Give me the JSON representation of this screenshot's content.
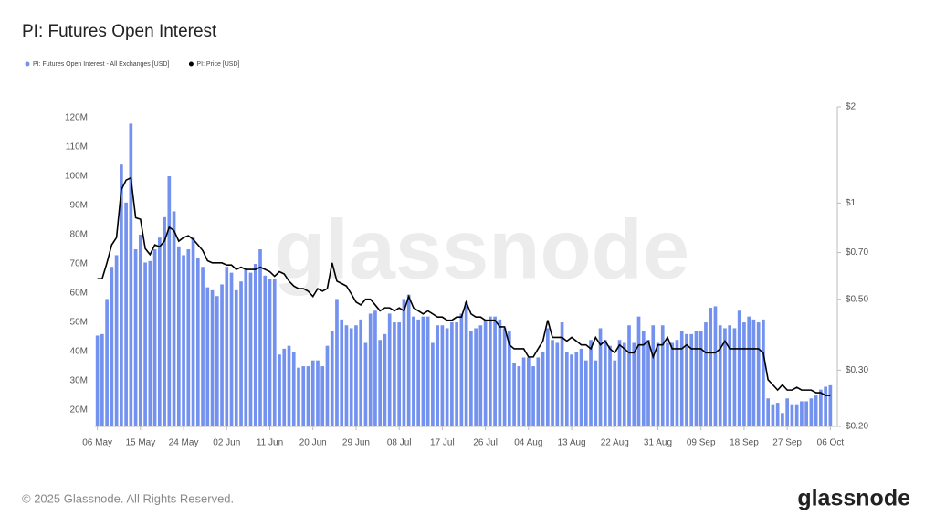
{
  "chart_data": {
    "type": "combo",
    "title": "PI: Futures Open Interest",
    "categories": [
      "06 May",
      null,
      null,
      null,
      null,
      null,
      null,
      null,
      null,
      "15 May",
      null,
      null,
      null,
      null,
      null,
      null,
      null,
      null,
      "24 May",
      null,
      null,
      null,
      null,
      null,
      null,
      null,
      null,
      "02 Jun",
      null,
      null,
      null,
      null,
      null,
      null,
      null,
      null,
      "11 Jun",
      null,
      null,
      null,
      null,
      null,
      null,
      null,
      null,
      "20 Jun",
      null,
      null,
      null,
      null,
      null,
      null,
      null,
      null,
      "29 Jun",
      null,
      null,
      null,
      null,
      null,
      null,
      null,
      null,
      "08 Jul",
      null,
      null,
      null,
      null,
      null,
      null,
      null,
      null,
      "17 Jul",
      null,
      null,
      null,
      null,
      null,
      null,
      null,
      null,
      "26 Jul",
      null,
      null,
      null,
      null,
      null,
      null,
      null,
      null,
      "04 Aug",
      null,
      null,
      null,
      null,
      null,
      null,
      null,
      null,
      "13 Aug",
      null,
      null,
      null,
      null,
      null,
      null,
      null,
      null,
      "22 Aug",
      null,
      null,
      null,
      null,
      null,
      null,
      null,
      null,
      "31 Aug",
      null,
      null,
      null,
      null,
      null,
      null,
      null,
      null,
      "09 Sep",
      null,
      null,
      null,
      null,
      null,
      null,
      null,
      null,
      "18 Sep",
      null,
      null,
      null,
      null,
      null,
      null,
      null,
      null,
      "27 Sep",
      null,
      null,
      null,
      null,
      null,
      null,
      null,
      null,
      "06 Oct"
    ],
    "series": [
      {
        "name": "PI: Futures Open Interest - All Exchanges [USD]",
        "type": "bar",
        "axis": "y",
        "color": "#7391ee",
        "values": [
          45500000.0,
          46000000.0,
          58000000.0,
          69000000.0,
          73000000.0,
          104000000.0,
          91000000.0,
          118000000.0,
          75000000.0,
          80000000.0,
          70500000.0,
          71000000.0,
          75000000.0,
          79000000.0,
          86000000.0,
          100000000.0,
          88000000.0,
          76000000.0,
          73000000.0,
          75000000.0,
          79000000.0,
          72000000.0,
          69000000.0,
          62000000.0,
          61000000.0,
          59000000.0,
          63000000.0,
          69000000.0,
          67000000.0,
          61000000.0,
          64000000.0,
          68000000.0,
          67000000.0,
          70000000.0,
          75000000.0,
          66000000.0,
          65000000.0,
          65000000.0,
          39000000.0,
          41000000.0,
          42000000.0,
          40000000.0,
          34500000.0,
          35000000.0,
          35000000.0,
          37000000.0,
          37000000.0,
          35000000.0,
          42000000.0,
          47000000.0,
          58000000.0,
          51000000.0,
          49000000.0,
          48000000.0,
          49000000.0,
          51000000.0,
          43000000.0,
          53000000.0,
          54000000.0,
          44000000.0,
          46000000.0,
          53000000.0,
          50000000.0,
          50000000.0,
          58000000.0,
          59500000.0,
          52000000.0,
          51000000.0,
          52000000.0,
          52000000.0,
          43000000.0,
          49000000.0,
          49000000.0,
          48000000.0,
          50000000.0,
          50000000.0,
          53000000.0,
          57000000.0,
          47000000.0,
          48000000.0,
          49000000.0,
          51000000.0,
          52000000.0,
          52000000.0,
          51000000.0,
          48000000.0,
          47000000.0,
          36000000.0,
          35000000.0,
          38000000.0,
          38000000.0,
          35000000.0,
          38000000.0,
          40000000.0,
          48000000.0,
          44000000.0,
          43000000.0,
          50000000.0,
          40000000.0,
          39000000.0,
          40000000.0,
          41000000.0,
          37000000.0,
          44000000.0,
          37000000.0,
          48000000.0,
          44000000.0,
          42000000.0,
          37000000.0,
          44000000.0,
          43000000.0,
          49000000.0,
          43000000.0,
          52000000.0,
          47000000.0,
          44000000.0,
          49000000.0,
          43000000.0,
          49000000.0,
          43000000.0,
          43000000.0,
          44000000.0,
          47000000.0,
          46000000.0,
          46000000.0,
          47000000.0,
          47000000.0,
          50000000.0,
          55000000.0,
          55500000.0,
          49000000.0,
          48000000.0,
          49000000.0,
          48000000.0,
          54000000.0,
          50000000.0,
          52000000.0,
          51000000.0,
          50000000.0,
          51000000.0,
          24000000.0,
          22000000.0,
          22500000.0,
          19000000.0,
          24000000.0,
          22000000.0,
          22000000.0,
          23000000.0,
          23000000.0,
          24000000.0,
          25000000.0,
          27000000.0,
          28000000.0,
          28500000.0
        ]
      },
      {
        "name": "PI: Price [USD]",
        "type": "line",
        "axis": "y2",
        "color": "#000000",
        "values": [
          0.58,
          0.58,
          0.65,
          0.74,
          0.78,
          1.1,
          1.18,
          1.2,
          0.9,
          0.89,
          0.72,
          0.69,
          0.74,
          0.73,
          0.76,
          0.84,
          0.82,
          0.76,
          0.78,
          0.79,
          0.77,
          0.74,
          0.71,
          0.66,
          0.65,
          0.65,
          0.65,
          0.64,
          0.64,
          0.62,
          0.63,
          0.62,
          0.62,
          0.62,
          0.63,
          0.62,
          0.61,
          0.59,
          0.61,
          0.6,
          0.57,
          0.55,
          0.54,
          0.54,
          0.53,
          0.51,
          0.54,
          0.53,
          0.54,
          0.65,
          0.57,
          0.56,
          0.55,
          0.52,
          0.49,
          0.48,
          0.5,
          0.5,
          0.48,
          0.46,
          0.47,
          0.47,
          0.46,
          0.47,
          0.46,
          0.51,
          0.47,
          0.46,
          0.45,
          0.46,
          0.45,
          0.44,
          0.44,
          0.43,
          0.43,
          0.44,
          0.44,
          0.49,
          0.45,
          0.44,
          0.44,
          0.43,
          0.43,
          0.43,
          0.41,
          0.41,
          0.36,
          0.35,
          0.35,
          0.35,
          0.33,
          0.33,
          0.35,
          0.37,
          0.43,
          0.38,
          0.38,
          0.38,
          0.37,
          0.38,
          0.37,
          0.36,
          0.36,
          0.35,
          0.38,
          0.36,
          0.37,
          0.35,
          0.34,
          0.36,
          0.35,
          0.34,
          0.34,
          0.36,
          0.36,
          0.37,
          0.33,
          0.36,
          0.36,
          0.38,
          0.35,
          0.35,
          0.35,
          0.36,
          0.35,
          0.35,
          0.35,
          0.34,
          0.34,
          0.34,
          0.35,
          0.37,
          0.35,
          0.35,
          0.35,
          0.35,
          0.35,
          0.35,
          0.35,
          0.34,
          0.28,
          0.27,
          0.26,
          0.27,
          0.26,
          0.26,
          0.265,
          0.26,
          0.26,
          0.26,
          0.255,
          0.255,
          0.25,
          0.25
        ]
      }
    ],
    "ylim": [
      14400000.0,
      123750000.0
    ],
    "yticks": [
      {
        "value": 20000000.0,
        "label": "20M"
      },
      {
        "value": 30000000.0,
        "label": "30M"
      },
      {
        "value": 40000000.0,
        "label": "40M"
      },
      {
        "value": 50000000.0,
        "label": "50M"
      },
      {
        "value": 60000000.0,
        "label": "60M"
      },
      {
        "value": 70000000.0,
        "label": "70M"
      },
      {
        "value": 80000000.0,
        "label": "80M"
      },
      {
        "value": 90000000.0,
        "label": "90M"
      },
      {
        "value": 100000000.0,
        "label": "100M"
      },
      {
        "value": 110000000.0,
        "label": "110M"
      },
      {
        "value": 120000000.0,
        "label": "120M"
      }
    ],
    "y2lim": [
      0.2,
      2
    ],
    "y2log": true,
    "y2ticks": [
      {
        "value": 0.2,
        "label": "$0.20"
      },
      {
        "value": 0.3,
        "label": "$0.30"
      },
      {
        "value": 0.5,
        "label": "$0.50"
      },
      {
        "value": 0.7,
        "label": "$0.70"
      },
      {
        "value": 1,
        "label": "$1"
      },
      {
        "value": 2,
        "label": "$2"
      }
    ],
    "grid": false
  },
  "watermark": "glassnode",
  "footer": "© 2025 Glassnode. All Rights Reserved.",
  "logo": "glassnode"
}
